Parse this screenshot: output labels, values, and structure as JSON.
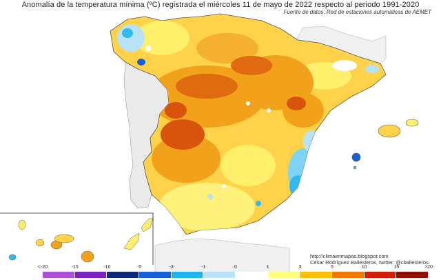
{
  "title": "Anomalía de la temperatura mínima (ºC) registrada el miércoles 11 de mayo de 2022 respecto al periodo 1991-2020",
  "source": "Fuente de datos: Red de estaciones automáticas de AEMET",
  "credit": {
    "url": "http://climaenmapas.blogspot.com",
    "author": "César Rodríguez Ballesteros, twitter: @cballesteros"
  },
  "legend": {
    "tick_labels": [
      "<-20",
      "-15",
      "-10",
      "-5",
      "-3",
      "-1",
      "0",
      "1",
      "3",
      "5",
      "10",
      "15",
      ">20"
    ],
    "colors": [
      "#e08ef0",
      "#b04fd8",
      "#7a1fc0",
      "#0c2a78",
      "#1560d8",
      "#1fb4f0",
      "#b8e2f7",
      "#ffffff",
      "#ffff80",
      "#ffc000",
      "#f07800",
      "#d02000",
      "#901000",
      "#6a3a10"
    ]
  },
  "map": {
    "region": "Península Ibérica, Baleares y Canarias",
    "inset": "Canarias"
  }
}
